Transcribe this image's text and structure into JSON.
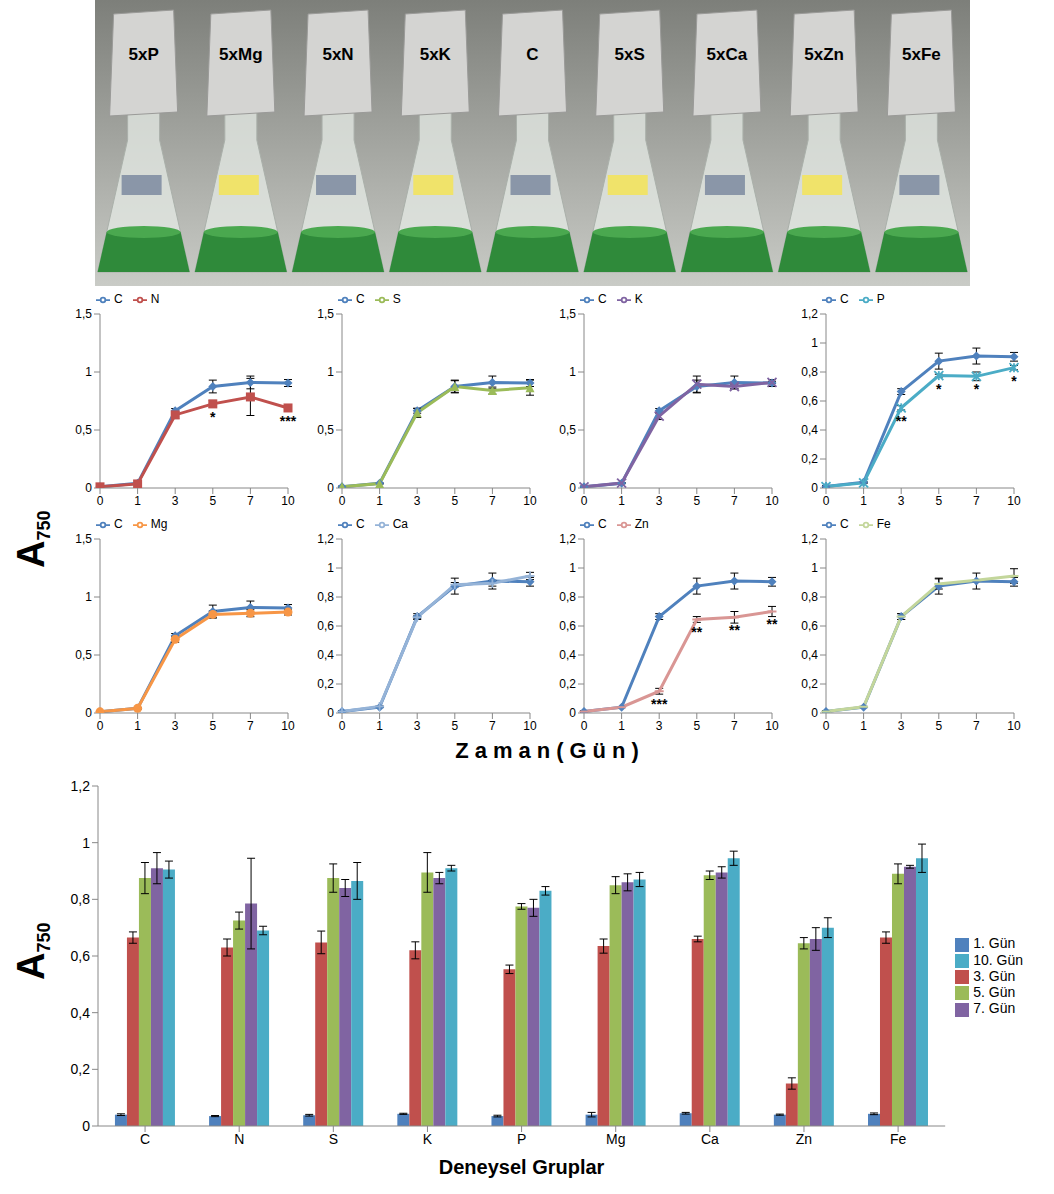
{
  "photo": {
    "labels": [
      "5xP",
      "5xMg",
      "5xN",
      "5xK",
      "C",
      "5xS",
      "5xCa",
      "5xZn",
      "5xFe"
    ]
  },
  "line_panels": {
    "x_label": "Zaman(Gün)",
    "y_label": "A750"
  },
  "chart_data": [
    {
      "type": "line",
      "categories": [
        "0",
        "1",
        "3",
        "5",
        "7",
        "10"
      ],
      "ylim": [
        0,
        1.5
      ],
      "yticks": [
        0,
        {
          "value": 0.5,
          "label": "0,5"
        },
        1,
        {
          "value": 1.5,
          "label": "1,5"
        }
      ],
      "series": [
        {
          "name": "C",
          "color": "#4f81bd",
          "marker": "diamond",
          "values": [
            0.01,
            0.04,
            0.665,
            0.875,
            0.91,
            0.905
          ],
          "errors": [
            0.005,
            0.003,
            0.02,
            0.055,
            0.055,
            0.03
          ]
        },
        {
          "name": "N",
          "color": "#c0504d",
          "marker": "square",
          "values": [
            0.01,
            0.035,
            0.63,
            0.725,
            0.785,
            0.69
          ],
          "errors": [
            0.005,
            0.002,
            0.03,
            0.03,
            0.16,
            0.015
          ]
        }
      ],
      "annotations": [
        {
          "x": "5",
          "text": "*"
        },
        {
          "x": "10",
          "text": "***"
        }
      ]
    },
    {
      "type": "line",
      "categories": [
        "0",
        "1",
        "3",
        "5",
        "7",
        "10"
      ],
      "ylim": [
        0,
        1.5
      ],
      "yticks": [
        0,
        {
          "value": 0.5,
          "label": "0,5"
        },
        1,
        {
          "value": 1.5,
          "label": "1,5"
        }
      ],
      "series": [
        {
          "name": "C",
          "color": "#4f81bd",
          "marker": "diamond",
          "values": [
            0.01,
            0.04,
            0.665,
            0.875,
            0.91,
            0.905
          ],
          "errors": [
            0.005,
            0.003,
            0.02,
            0.055,
            0.055,
            0.03
          ]
        },
        {
          "name": "S",
          "color": "#9bbb59",
          "marker": "triangle",
          "values": [
            0.01,
            0.038,
            0.648,
            0.875,
            0.84,
            0.865
          ],
          "errors": [
            0.005,
            0.003,
            0.04,
            0.05,
            0.03,
            0.065
          ]
        }
      ],
      "annotations": []
    },
    {
      "type": "line",
      "categories": [
        "0",
        "1",
        "3",
        "5",
        "7",
        "10"
      ],
      "ylim": [
        0,
        1.5
      ],
      "yticks": [
        0,
        {
          "value": 0.5,
          "label": "0,5"
        },
        1,
        {
          "value": 1.5,
          "label": "1,5"
        }
      ],
      "series": [
        {
          "name": "C",
          "color": "#4f81bd",
          "marker": "diamond",
          "values": [
            0.01,
            0.04,
            0.665,
            0.875,
            0.91,
            0.905
          ],
          "errors": [
            0.005,
            0.003,
            0.02,
            0.055,
            0.055,
            0.03
          ]
        },
        {
          "name": "K",
          "color": "#8064a2",
          "marker": "x",
          "values": [
            0.01,
            0.043,
            0.62,
            0.895,
            0.875,
            0.91
          ],
          "errors": [
            0.005,
            0.002,
            0.03,
            0.07,
            0.02,
            0.01
          ]
        }
      ],
      "annotations": []
    },
    {
      "type": "line",
      "categories": [
        "0",
        "1",
        "3",
        "5",
        "7",
        "10"
      ],
      "ylim": [
        0,
        1.2
      ],
      "yticks": [
        0,
        {
          "value": 0.2,
          "label": "0,2"
        },
        {
          "value": 0.4,
          "label": "0,4"
        },
        {
          "value": 0.6,
          "label": "0,6"
        },
        {
          "value": 0.8,
          "label": "0,8"
        },
        1,
        {
          "value": 1.2,
          "label": "1,2"
        }
      ],
      "series": [
        {
          "name": "C",
          "color": "#4f81bd",
          "marker": "diamond",
          "values": [
            0.01,
            0.04,
            0.665,
            0.875,
            0.91,
            0.905
          ],
          "errors": [
            0.005,
            0.003,
            0.02,
            0.055,
            0.055,
            0.03
          ]
        },
        {
          "name": "P",
          "color": "#4bacc6",
          "marker": "star",
          "values": [
            0.01,
            0.035,
            0.553,
            0.775,
            0.77,
            0.83
          ],
          "errors": [
            0.005,
            0.003,
            0.015,
            0.01,
            0.03,
            0.015
          ]
        }
      ],
      "annotations": [
        {
          "x": "3",
          "text": "**"
        },
        {
          "x": "5",
          "text": "*"
        },
        {
          "x": "7",
          "text": "*"
        },
        {
          "x": "10",
          "text": "*"
        }
      ]
    },
    {
      "type": "line",
      "categories": [
        "0",
        "1",
        "3",
        "5",
        "7",
        "10"
      ],
      "ylim": [
        0,
        1.5
      ],
      "yticks": [
        0,
        {
          "value": 0.5,
          "label": "0,5"
        },
        1,
        {
          "value": 1.5,
          "label": "1,5"
        }
      ],
      "series": [
        {
          "name": "C",
          "color": "#4f81bd",
          "marker": "diamond",
          "values": [
            0.01,
            0.04,
            0.665,
            0.875,
            0.91,
            0.905
          ],
          "errors": [
            0.005,
            0.003,
            0.02,
            0.055,
            0.055,
            0.03
          ]
        },
        {
          "name": "Mg",
          "color": "#f79646",
          "marker": "circle",
          "values": [
            0.01,
            0.04,
            0.635,
            0.85,
            0.86,
            0.87
          ],
          "errors": [
            0.005,
            0.008,
            0.025,
            0.03,
            0.03,
            0.025
          ]
        }
      ],
      "annotations": []
    },
    {
      "type": "line",
      "categories": [
        "0",
        "1",
        "3",
        "5",
        "7",
        "10"
      ],
      "ylim": [
        0,
        1.2
      ],
      "yticks": [
        0,
        {
          "value": 0.2,
          "label": "0,2"
        },
        {
          "value": 0.4,
          "label": "0,4"
        },
        {
          "value": 0.6,
          "label": "0,6"
        },
        {
          "value": 0.8,
          "label": "0,8"
        },
        1,
        {
          "value": 1.2,
          "label": "1,2"
        }
      ],
      "series": [
        {
          "name": "C",
          "color": "#4f81bd",
          "marker": "diamond",
          "values": [
            0.01,
            0.04,
            0.665,
            0.875,
            0.91,
            0.905
          ],
          "errors": [
            0.005,
            0.003,
            0.02,
            0.055,
            0.055,
            0.03
          ]
        },
        {
          "name": "Ca",
          "color": "#95b3d7",
          "marker": "plus",
          "values": [
            0.01,
            0.045,
            0.66,
            0.885,
            0.895,
            0.945
          ],
          "errors": [
            0.005,
            0.003,
            0.01,
            0.015,
            0.02,
            0.025
          ]
        }
      ],
      "annotations": []
    },
    {
      "type": "line",
      "categories": [
        "0",
        "1",
        "3",
        "5",
        "7",
        "10"
      ],
      "ylim": [
        0,
        1.2
      ],
      "yticks": [
        0,
        {
          "value": 0.2,
          "label": "0,2"
        },
        {
          "value": 0.4,
          "label": "0,4"
        },
        {
          "value": 0.6,
          "label": "0,6"
        },
        {
          "value": 0.8,
          "label": "0,8"
        },
        1,
        {
          "value": 1.2,
          "label": "1,2"
        }
      ],
      "series": [
        {
          "name": "C",
          "color": "#4f81bd",
          "marker": "diamond",
          "values": [
            0.01,
            0.04,
            0.665,
            0.875,
            0.91,
            0.905
          ],
          "errors": [
            0.005,
            0.003,
            0.02,
            0.055,
            0.055,
            0.03
          ]
        },
        {
          "name": "Zn",
          "color": "#d99694",
          "marker": "dash",
          "values": [
            0.01,
            0.04,
            0.15,
            0.645,
            0.66,
            0.7
          ],
          "errors": [
            0.005,
            0.002,
            0.02,
            0.02,
            0.04,
            0.035
          ]
        }
      ],
      "annotations": [
        {
          "x": "3",
          "text": "***"
        },
        {
          "x": "5",
          "text": "**"
        },
        {
          "x": "7",
          "text": "**"
        },
        {
          "x": "10",
          "text": "**"
        }
      ]
    },
    {
      "type": "line",
      "categories": [
        "0",
        "1",
        "3",
        "5",
        "7",
        "10"
      ],
      "ylim": [
        0,
        1.2
      ],
      "yticks": [
        0,
        {
          "value": 0.2,
          "label": "0,2"
        },
        {
          "value": 0.4,
          "label": "0,4"
        },
        {
          "value": 0.6,
          "label": "0,6"
        },
        {
          "value": 0.8,
          "label": "0,8"
        },
        1,
        {
          "value": 1.2,
          "label": "1,2"
        }
      ],
      "series": [
        {
          "name": "C",
          "color": "#4f81bd",
          "marker": "diamond",
          "values": [
            0.01,
            0.04,
            0.665,
            0.875,
            0.91,
            0.905
          ],
          "errors": [
            0.005,
            0.003,
            0.02,
            0.055,
            0.055,
            0.03
          ]
        },
        {
          "name": "Fe",
          "color": "#c3d69b",
          "marker": "dash",
          "values": [
            0.01,
            0.043,
            0.665,
            0.89,
            0.915,
            0.945
          ],
          "errors": [
            0.005,
            0.003,
            0.02,
            0.035,
            0.005,
            0.05
          ]
        }
      ],
      "annotations": []
    },
    {
      "type": "bar",
      "x_label": "Deneysel Gruplar",
      "y_label": "A750",
      "legend": "right",
      "categories": [
        "C",
        "N",
        "S",
        "K",
        "P",
        "Mg",
        "Ca",
        "Zn",
        "Fe"
      ],
      "ylim": [
        0,
        1.2
      ],
      "yticks": [
        0,
        {
          "value": 0.2,
          "label": "0,2"
        },
        {
          "value": 0.4,
          "label": "0,4"
        },
        {
          "value": 0.6,
          "label": "0,6"
        },
        {
          "value": 0.8,
          "label": "0,8"
        },
        1,
        {
          "value": 1.2,
          "label": "1,2"
        }
      ],
      "series": [
        {
          "name": "1. Gün",
          "color": "#4f81bd",
          "values": [
            0.04,
            0.035,
            0.038,
            0.043,
            0.035,
            0.04,
            0.045,
            0.04,
            0.043
          ],
          "errors": [
            0.003,
            0.002,
            0.003,
            0.002,
            0.003,
            0.008,
            0.003,
            0.002,
            0.003
          ]
        },
        {
          "name": "3. Gün",
          "color": "#c0504d",
          "values": [
            0.665,
            0.63,
            0.648,
            0.62,
            0.553,
            0.635,
            0.66,
            0.15,
            0.665
          ],
          "errors": [
            0.02,
            0.03,
            0.04,
            0.03,
            0.015,
            0.025,
            0.01,
            0.02,
            0.02
          ]
        },
        {
          "name": "5. Gün",
          "color": "#9bbb59",
          "values": [
            0.875,
            0.725,
            0.875,
            0.895,
            0.775,
            0.85,
            0.885,
            0.645,
            0.89
          ],
          "errors": [
            0.055,
            0.03,
            0.05,
            0.07,
            0.01,
            0.03,
            0.015,
            0.02,
            0.035
          ]
        },
        {
          "name": "7. Gün",
          "color": "#8064a2",
          "values": [
            0.91,
            0.785,
            0.84,
            0.875,
            0.77,
            0.86,
            0.895,
            0.66,
            0.915
          ],
          "errors": [
            0.055,
            0.16,
            0.03,
            0.02,
            0.03,
            0.03,
            0.02,
            0.04,
            0.005
          ]
        },
        {
          "name": "10. Gün",
          "color": "#4bacc6",
          "values": [
            0.905,
            0.69,
            0.865,
            0.91,
            0.83,
            0.87,
            0.945,
            0.7,
            0.945
          ],
          "errors": [
            0.03,
            0.015,
            0.065,
            0.01,
            0.015,
            0.025,
            0.025,
            0.035,
            0.05
          ]
        }
      ]
    }
  ]
}
